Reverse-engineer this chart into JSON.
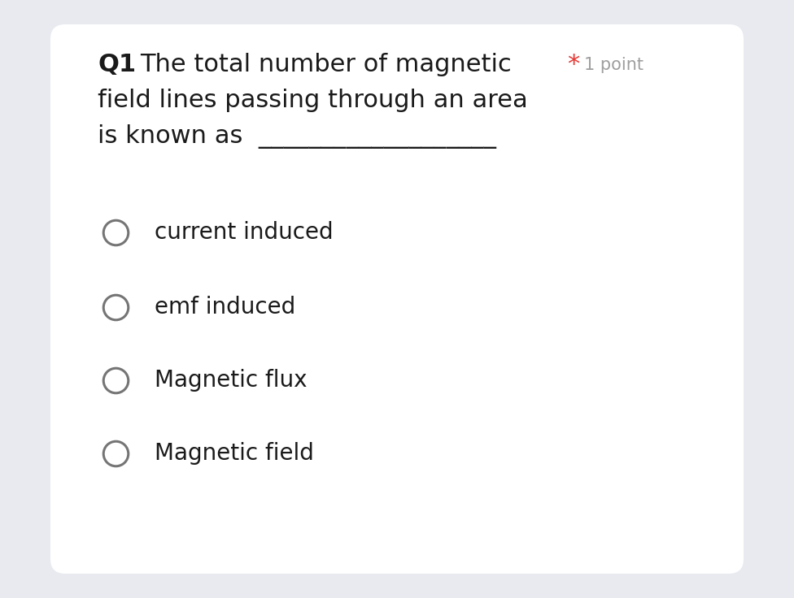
{
  "background_outer": "#e8eaf0",
  "background_card": "#ffffff",
  "question_number": "Q1",
  "question_text_line1": "The total number of magnetic",
  "question_text_line2": "field lines passing through an area",
  "question_text_line3": "is known as",
  "underline_text": "___________________",
  "required_star": "*",
  "points_text": "1 point",
  "options": [
    "current induced",
    "emf induced",
    "Magnetic flux",
    "Magnetic field"
  ],
  "text_color": "#1a1a1a",
  "star_color": "#e53935",
  "points_color": "#9e9e9e",
  "circle_edge_color": "#757575",
  "circle_linewidth": 2.2,
  "q1_fontsize": 22,
  "question_fontsize": 22,
  "option_fontsize": 20,
  "points_fontsize": 15
}
